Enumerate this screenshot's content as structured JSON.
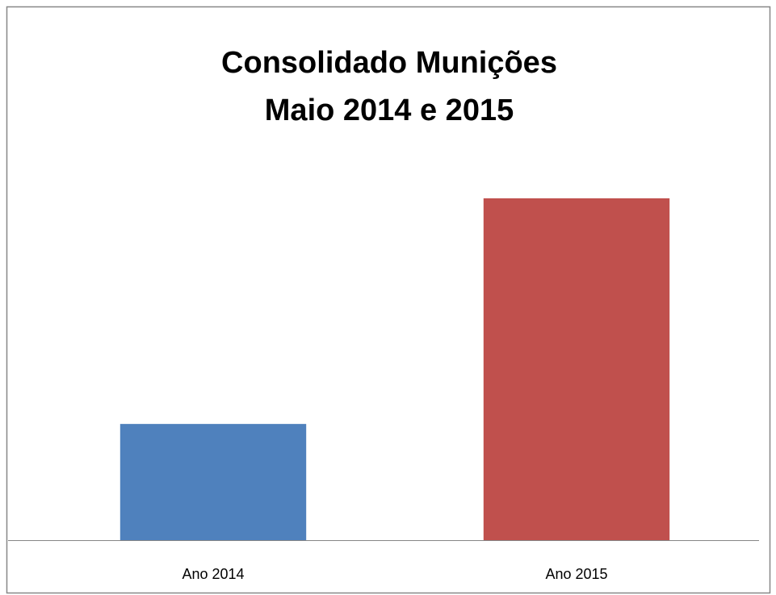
{
  "chart_data": {
    "type": "bar",
    "title": [
      "Consolidado Munições",
      "Maio 2014 e 2015"
    ],
    "categories": [
      "Ano 2014",
      "Ano 2015"
    ],
    "series": [
      {
        "name": "Ano 2014",
        "color": "#4f81bd"
      },
      {
        "name": "Ano 2015",
        "color": "#c0504d"
      }
    ],
    "values": [
      34,
      100
    ],
    "colors": [
      "#4f81bd",
      "#c0504d"
    ]
  }
}
